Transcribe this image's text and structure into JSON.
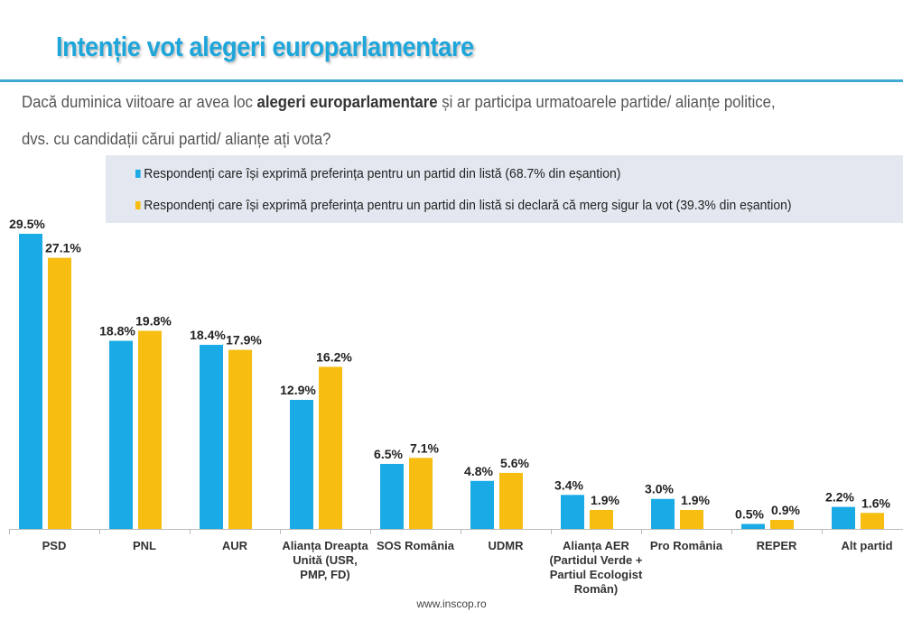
{
  "title": "Intenție vot alegeri europarlamentare",
  "question": {
    "line1_pre": "Dacă duminica viitoare ar avea loc ",
    "line1_bold": "alegeri europarlamentare",
    "line1_post": " și ar participa urmatoarele partide/ alianțe politice,",
    "line2": "dvs. cu candidații cărui partid/ alianțe ați vota?"
  },
  "source": "www.inscop.ro",
  "chart_data": {
    "type": "bar",
    "categories": [
      "PSD",
      "PNL",
      "AUR",
      "Alianța Dreapta Unită (USR, PMP, FD)",
      "SOS România",
      "UDMR",
      "Alianța AER (Partidul Verde + Partiul Ecologist Român)",
      "Pro România",
      "REPER",
      "Alt partid"
    ],
    "category_lines": [
      [
        "PSD"
      ],
      [
        "PNL"
      ],
      [
        "AUR"
      ],
      [
        "Alianța Dreapta",
        "Unită (USR,",
        "PMP, FD)"
      ],
      [
        "SOS România"
      ],
      [
        "UDMR"
      ],
      [
        "Alianța AER",
        "(Partidul Verde +",
        "Partiul Ecologist",
        "Român)"
      ],
      [
        "Pro România"
      ],
      [
        "REPER"
      ],
      [
        "Alt partid"
      ]
    ],
    "series": [
      {
        "name": "Respondenți care își exprimă preferința pentru un partid din listă (68.7% din eșantion)",
        "color": "#1aabe6",
        "values": [
          29.5,
          18.8,
          18.4,
          12.9,
          6.5,
          4.8,
          3.4,
          3.0,
          0.5,
          2.2
        ]
      },
      {
        "name": "Respondenți care își exprimă preferința pentru un partid din listă si declară că merg sigur la vot (39.3% din eșantion)",
        "color": "#f7bd11",
        "values": [
          27.1,
          19.8,
          17.9,
          16.2,
          7.1,
          5.6,
          1.9,
          1.9,
          0.9,
          1.6
        ]
      }
    ],
    "value_suffix": "%",
    "ylim": [
      0,
      30
    ],
    "grid": false,
    "legend_position": "top"
  }
}
